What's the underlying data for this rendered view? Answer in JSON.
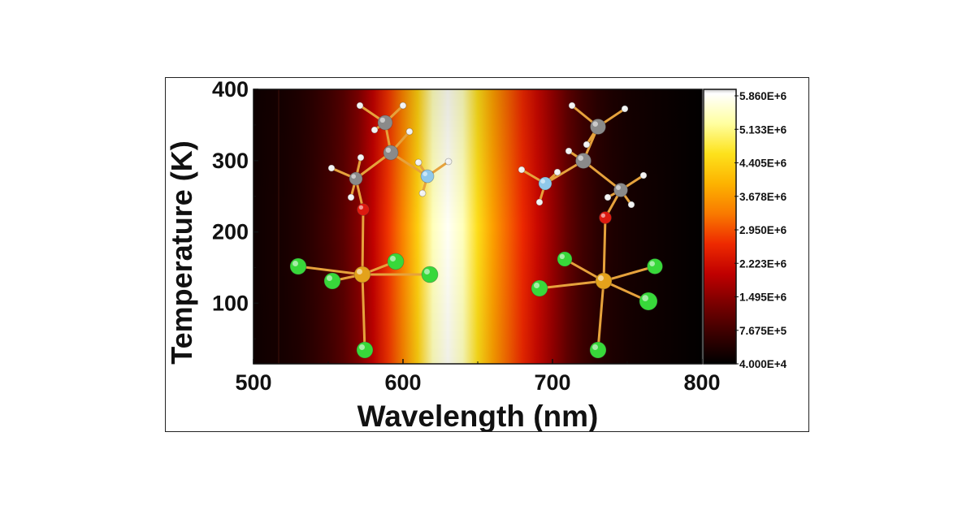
{
  "chart_data": {
    "type": "heatmap",
    "title": "",
    "xlabel": "Wavelength (nm)",
    "ylabel": "Temperature (K)",
    "xlim": [
      500,
      800
    ],
    "ylim": [
      15,
      400
    ],
    "x_ticks": [
      500,
      600,
      700,
      800
    ],
    "y_ticks": [
      100,
      200,
      300,
      400
    ],
    "x_tick_labels": [
      "500",
      "600",
      "700",
      "800"
    ],
    "y_tick_labels": [
      "100",
      "200",
      "300",
      "400"
    ],
    "colorbar": {
      "labels": [
        "5.860E+6",
        "5.133E+6",
        "4.405E+6",
        "3.678E+6",
        "2.950E+6",
        "2.223E+6",
        "1.495E+6",
        "7.675E+5",
        "4.000E+4"
      ],
      "min": 40000,
      "max": 5860000,
      "colors": [
        "#000000",
        "#3a0000",
        "#7a0000",
        "#c00000",
        "#ee2a00",
        "#f97a00",
        "#fdb300",
        "#fde21c",
        "#ffffa0",
        "#ffffff",
        "#c8c8c8"
      ]
    },
    "emission_profile": {
      "wavelength_nm": [
        500,
        510,
        520,
        530,
        540,
        550,
        560,
        570,
        580,
        590,
        600,
        610,
        620,
        630,
        640,
        650,
        660,
        670,
        680,
        690,
        700,
        710,
        720,
        730,
        740,
        750,
        760,
        770,
        780,
        790,
        800
      ],
      "intensity": [
        200000,
        260000,
        300000,
        400000,
        550000,
        750000,
        1000000,
        1400000,
        2000000,
        2700000,
        3400000,
        4300000,
        5400000,
        5800000,
        5400000,
        4500000,
        3700000,
        3100000,
        2600000,
        2100000,
        1600000,
        1100000,
        750000,
        520000,
        380000,
        290000,
        230000,
        180000,
        140000,
        100000,
        60000
      ]
    }
  },
  "structures": {
    "atom_colors": {
      "Mn": "#e3a21b",
      "Cl": "#38d83a",
      "O": "#dc1a10",
      "C": "#8a8a8a",
      "N": "#8fc8ea",
      "H": "#f2f2f2",
      "bond": "#e6a23c"
    }
  }
}
